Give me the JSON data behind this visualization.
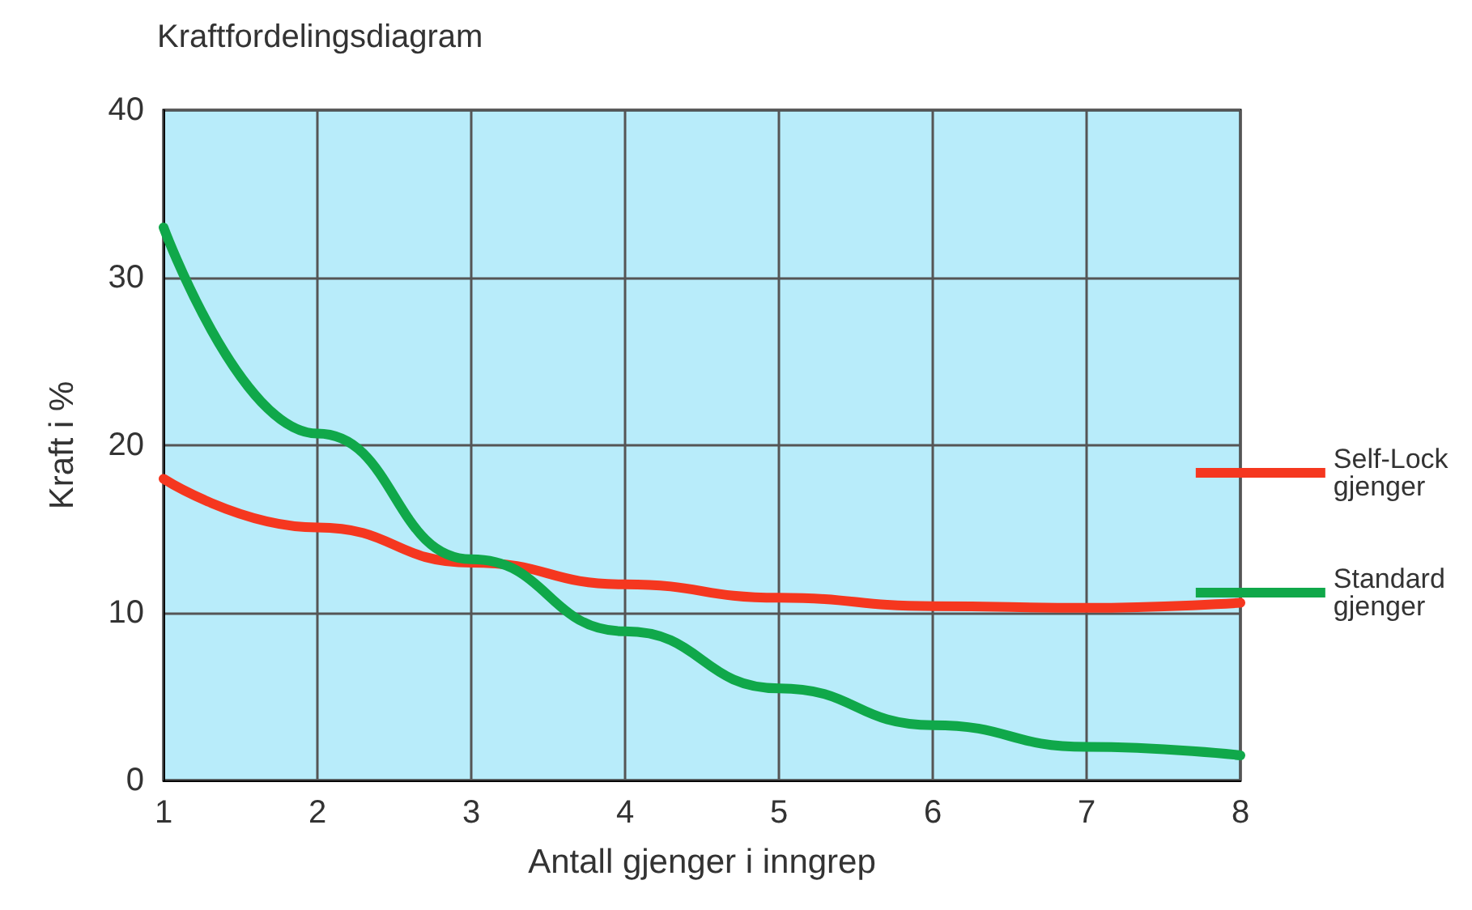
{
  "chart_data": {
    "type": "line",
    "title": "Kraftfordelingsdiagram",
    "xlabel": "Antall gjenger i inngrep",
    "ylabel": "Kraft i %",
    "x": [
      1,
      2,
      3,
      4,
      5,
      6,
      7,
      8
    ],
    "series": [
      {
        "name": "Self-Lock gjenger",
        "color": "#f5371f",
        "values": [
          18,
          15.1,
          13,
          11.7,
          10.9,
          10.4,
          10.3,
          10.6
        ]
      },
      {
        "name": "Standard gjenger",
        "color": "#10a84a",
        "values": [
          33,
          20.7,
          13.2,
          8.9,
          5.5,
          3.3,
          2.0,
          1.5
        ]
      }
    ],
    "xlim": [
      1,
      8
    ],
    "xticks": [
      1,
      2,
      3,
      4,
      5,
      6,
      7,
      8
    ],
    "ylim": [
      0,
      40
    ],
    "yticks": [
      0,
      10,
      20,
      30,
      40
    ],
    "grid": true,
    "legend": "right",
    "marker": "none",
    "line_style": "solid"
  }
}
